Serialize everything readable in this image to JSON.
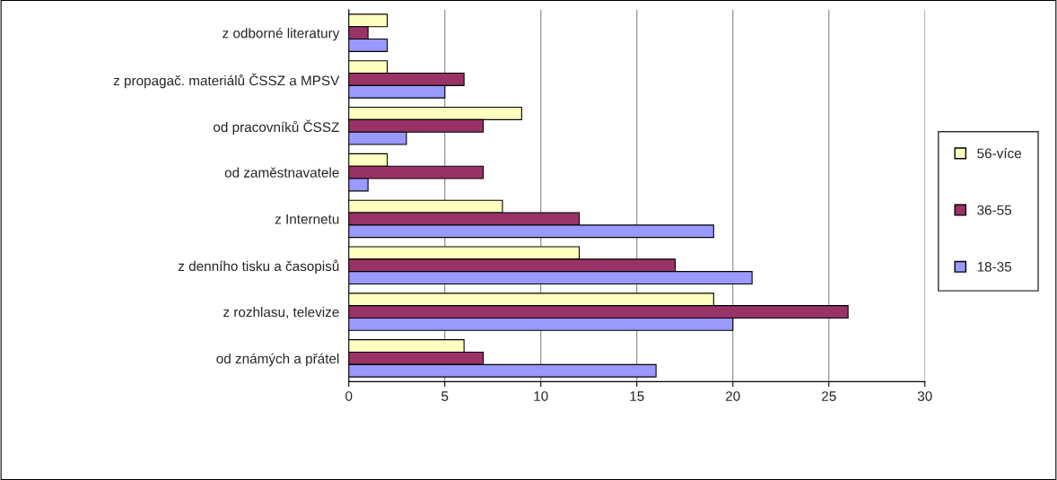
{
  "chart_data": {
    "type": "bar",
    "orientation": "horizontal",
    "categories": [
      "z odborné literatury",
      "z propagač. materiálů ČSSZ a MPSV",
      "od pracovníků ČSSZ",
      "od zaměstnavatele",
      "z Internetu",
      "z denního tisku a časopisů",
      "z rozhlasu, televize",
      "od známých a přátel"
    ],
    "series": [
      {
        "name": "56-více",
        "color": "#ffffc0",
        "values": [
          2,
          2,
          9,
          2,
          8,
          12,
          19,
          6
        ]
      },
      {
        "name": "36-55",
        "color": "#993366",
        "values": [
          1,
          6,
          7,
          7,
          12,
          17,
          26,
          7
        ]
      },
      {
        "name": "18-35",
        "color": "#9999ff",
        "values": [
          2,
          5,
          3,
          1,
          19,
          21,
          20,
          16
        ]
      }
    ],
    "xlim": [
      0,
      30
    ],
    "xticks": [
      0,
      5,
      10,
      15,
      20,
      25,
      30
    ],
    "grid": "x",
    "legend": "right"
  }
}
